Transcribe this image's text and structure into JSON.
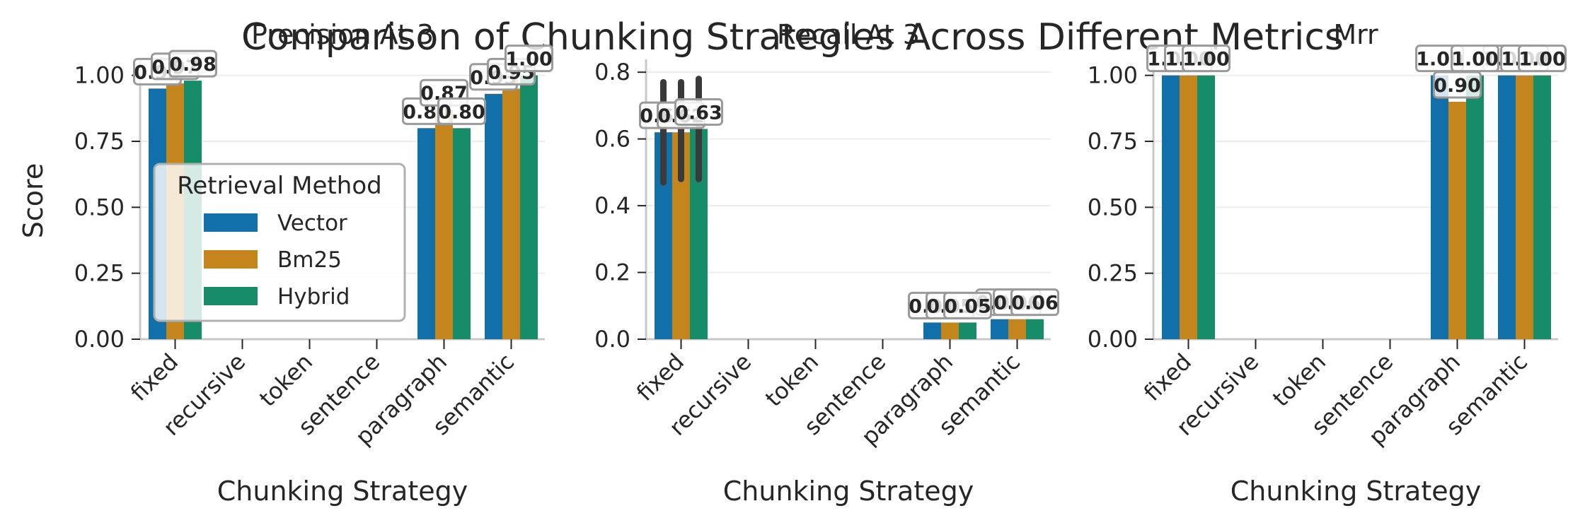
{
  "title": "Comparison of Chunking Strategies Across Different Metrics",
  "colors": {
    "Vector": "#1170aa",
    "Bm25": "#c5851d",
    "Hybrid": "#168c69"
  },
  "chart_data": [
    {
      "type": "bar",
      "title": "Precision At 3",
      "xlabel": "Chunking Strategy",
      "ylabel": "Score",
      "ylim": [
        0,
        1.05
      ],
      "yticks": [
        "0.00",
        "0.25",
        "0.50",
        "0.75",
        "1.00"
      ],
      "yticks_values": [
        0,
        0.25,
        0.5,
        0.75,
        1.0
      ],
      "categories": [
        "fixed",
        "recursive",
        "token",
        "sentence",
        "paragraph",
        "semantic"
      ],
      "series": [
        {
          "name": "Vector",
          "values": [
            0.95,
            null,
            null,
            null,
            0.8,
            0.93
          ]
        },
        {
          "name": "Bm25",
          "values": [
            0.97,
            null,
            null,
            null,
            0.87,
            0.95
          ]
        },
        {
          "name": "Hybrid",
          "values": [
            0.98,
            null,
            null,
            null,
            0.8,
            1.0
          ]
        }
      ],
      "data_labels": [
        [
          "0.95",
          null,
          null,
          null,
          "0.80",
          "0.93"
        ],
        [
          "0.97",
          null,
          null,
          null,
          "0.87",
          "0.95"
        ],
        [
          "0.98",
          null,
          null,
          null,
          "0.80",
          "1.00"
        ]
      ],
      "error_bars": [],
      "legend": {
        "title": "Retrieval Method",
        "placement": "center-left"
      },
      "grid": true
    },
    {
      "type": "bar",
      "title": "Recall At 3",
      "xlabel": "Chunking Strategy",
      "ylabel": "",
      "ylim": [
        0,
        0.83
      ],
      "yticks": [
        "0.0",
        "0.2",
        "0.4",
        "0.6",
        "0.8"
      ],
      "yticks_values": [
        0,
        0.2,
        0.4,
        0.6,
        0.8
      ],
      "categories": [
        "fixed",
        "recursive",
        "token",
        "sentence",
        "paragraph",
        "semantic"
      ],
      "series": [
        {
          "name": "Vector",
          "values": [
            0.62,
            null,
            null,
            null,
            0.05,
            0.06
          ]
        },
        {
          "name": "Bm25",
          "values": [
            0.62,
            null,
            null,
            null,
            0.05,
            0.06
          ]
        },
        {
          "name": "Hybrid",
          "values": [
            0.63,
            null,
            null,
            null,
            0.05,
            0.06
          ]
        }
      ],
      "data_labels": [
        [
          "0.62",
          null,
          null,
          null,
          "0.05",
          "0.06"
        ],
        [
          "0.62",
          null,
          null,
          null,
          "0.05",
          "0.06"
        ],
        [
          "0.63",
          null,
          null,
          null,
          "0.05",
          "0.06"
        ]
      ],
      "error_bars": [
        {
          "series": 0,
          "category": 0,
          "low": 0.47,
          "high": 0.77
        },
        {
          "series": 1,
          "category": 0,
          "low": 0.48,
          "high": 0.77
        },
        {
          "series": 2,
          "category": 0,
          "low": 0.48,
          "high": 0.78
        }
      ],
      "grid": true
    },
    {
      "type": "bar",
      "title": "Mrr",
      "xlabel": "Chunking Strategy",
      "ylabel": "",
      "ylim": [
        0,
        1.05
      ],
      "yticks": [
        "0.00",
        "0.25",
        "0.50",
        "0.75",
        "1.00"
      ],
      "yticks_values": [
        0,
        0.25,
        0.5,
        0.75,
        1.0
      ],
      "categories": [
        "fixed",
        "recursive",
        "token",
        "sentence",
        "paragraph",
        "semantic"
      ],
      "series": [
        {
          "name": "Vector",
          "values": [
            1.0,
            null,
            null,
            null,
            1.0,
            1.0
          ]
        },
        {
          "name": "Bm25",
          "values": [
            1.0,
            null,
            null,
            null,
            0.9,
            1.0
          ]
        },
        {
          "name": "Hybrid",
          "values": [
            1.0,
            null,
            null,
            null,
            1.0,
            1.0
          ]
        }
      ],
      "data_labels": [
        [
          "1.00",
          null,
          null,
          null,
          "1.00",
          "1.00"
        ],
        [
          "1.00",
          null,
          null,
          null,
          "0.90",
          "1.00"
        ],
        [
          "1.00",
          null,
          null,
          null,
          "1.00",
          "1.00"
        ]
      ],
      "error_bars": [],
      "grid": true
    }
  ]
}
